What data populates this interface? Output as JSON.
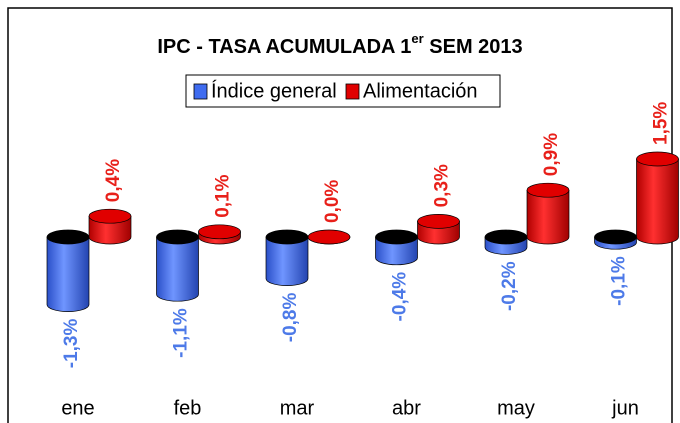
{
  "chart_data": {
    "type": "bar3d",
    "title": [
      "IPC - TASA ACUMULADA 1",
      "er",
      " SEM 2013"
    ],
    "categories": [
      "ene",
      "feb",
      "mar",
      "abr",
      "may",
      "jun"
    ],
    "series": [
      {
        "name": "Índice general",
        "color": "#3f6cf0",
        "label_color": "#4d7ae8",
        "values": [
          -1.3,
          -1.1,
          -0.8,
          -0.4,
          -0.2,
          -0.1
        ],
        "value_labels": [
          "-1,3%",
          "-1,1%",
          "-0,8%",
          "-0,4%",
          "-0,2%",
          "-0,1%"
        ]
      },
      {
        "name": "Alimentación",
        "color": "#e00000",
        "label_color": "#e8201a",
        "values": [
          0.4,
          0.1,
          0.0,
          0.3,
          0.9,
          1.5
        ],
        "value_labels": [
          "0,4%",
          "0,1%",
          "0,0%",
          "0,3%",
          "0,9%",
          "1,5%"
        ]
      }
    ]
  }
}
